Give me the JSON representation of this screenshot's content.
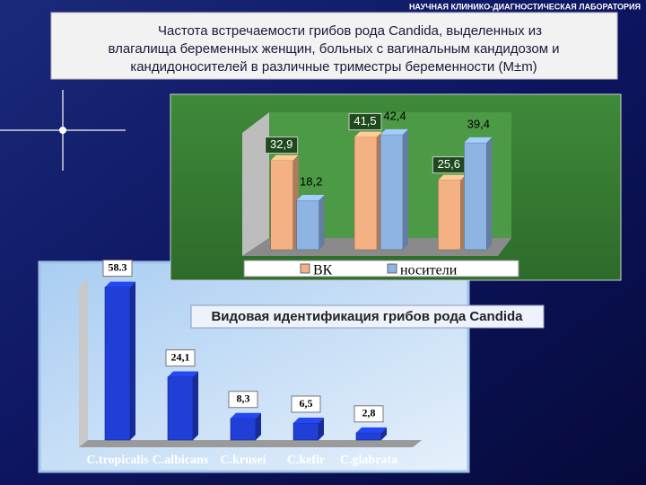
{
  "header": "НАУЧНАЯ КЛИНИКО-ДИАГНОСТИЧЕСКАЯ ЛАБОРАТОРИЯ",
  "title": [
    "Частота встречаемости грибов рода Candida, выделенных из",
    "влагалища беременных женщин, больных с вагинальным кандидозом и",
    "кандидоносителей в различные триместры беременности (M±m)"
  ],
  "chart_data": [
    {
      "type": "bar3d",
      "categories": [
        null,
        null,
        null
      ],
      "series": [
        {
          "name": "ВК",
          "color": "#f4b183",
          "values": [
            32.9,
            41.5,
            25.6
          ],
          "value_labels": [
            "32,9",
            "41,5",
            "25,6"
          ]
        },
        {
          "name": "носители",
          "color": "#8db4e2",
          "values": [
            18.2,
            42.4,
            39.4
          ],
          "value_labels": [
            "18,2",
            "42,4",
            "39,4"
          ]
        }
      ],
      "ylim": [
        0,
        45
      ],
      "legend": "bottom"
    },
    {
      "type": "bar3d",
      "title": "Видовая идентификация грибов рода Candida",
      "categories": [
        "C.tropicalis",
        "C.albicans",
        "C.krusei",
        "C.kefir",
        "C.glabrata"
      ],
      "values": [
        58.3,
        24.1,
        8.3,
        6.5,
        2.8
      ],
      "value_labels": [
        "58.3",
        "24,1",
        "8,3",
        "6,5",
        "2,8"
      ],
      "color": "#1f3fd6",
      "ylim": [
        0,
        65
      ]
    }
  ]
}
